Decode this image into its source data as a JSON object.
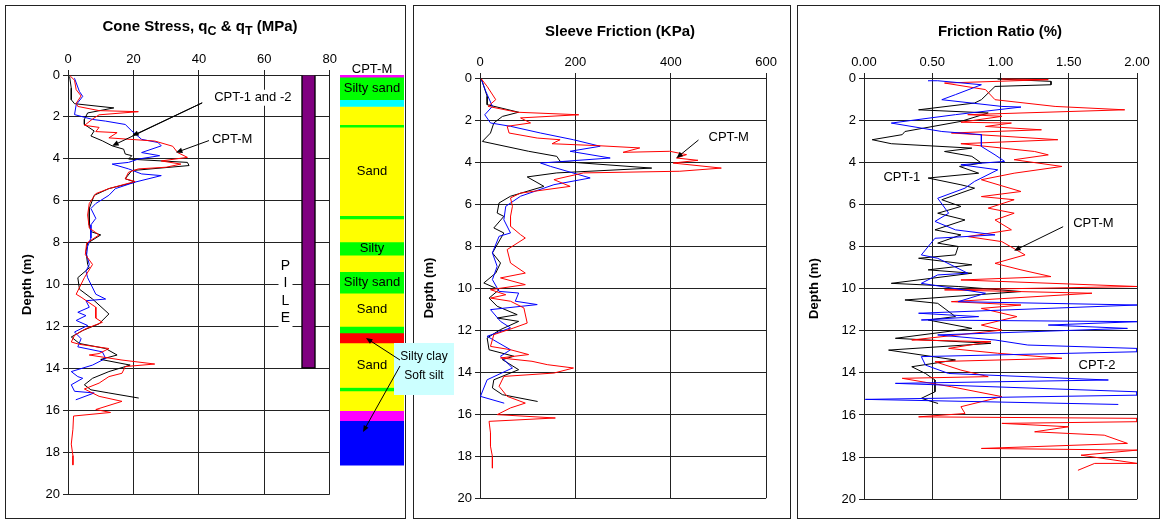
{
  "chart_data": [
    {
      "type": "line",
      "title": "Cone Stress, q$_{C}$ & q$_{T}$ (MPa)",
      "ylabel": "Depth (m)",
      "xlim": [
        0,
        80
      ],
      "xticks": [
        0,
        20,
        40,
        60,
        80
      ],
      "ylim": [
        20,
        0
      ],
      "yticks": [
        0,
        2,
        4,
        6,
        8,
        10,
        12,
        14,
        16,
        18,
        20
      ],
      "grid": true,
      "marker": "none",
      "series": [
        {
          "color": "#000000",
          "x": [
            0.5,
            1,
            1,
            2,
            14,
            6,
            5,
            5,
            8,
            7,
            10.5,
            13.5,
            17,
            17.5,
            19.5,
            18.5,
            36.5,
            37,
            19.5,
            17.5,
            20.5,
            12.5,
            8,
            6.5,
            6.5,
            7,
            10,
            6,
            5.5,
            6,
            6.5,
            3,
            3.5,
            7.5,
            12.5,
            9.5,
            4.5,
            1,
            3.5,
            11.5,
            15,
            10,
            19,
            12.5,
            7.5,
            5,
            7,
            12.5,
            21.5
          ],
          "values": [
            0.08,
            0.63,
            1.18,
            1.37,
            1.57,
            1.81,
            2.12,
            2.36,
            2.67,
            2.91,
            3.14,
            3.38,
            3.54,
            3.77,
            3.85,
            4.01,
            4.17,
            4.32,
            4.56,
            4.95,
            5.11,
            5.42,
            5.74,
            6.37,
            7.15,
            7.47,
            7.63,
            8.02,
            8.41,
            9.04,
            9.2,
            9.67,
            10.22,
            10.69,
            11.4,
            11.87,
            12.19,
            12.5,
            12.81,
            13.05,
            13.36,
            13.57,
            13.84,
            14.15,
            14.47,
            14.78,
            15.02,
            15.17,
            15.41
          ]
        },
        {
          "color": "#0000ff",
          "x": [
            2,
            3.5,
            4.5,
            2.5,
            2,
            7.5,
            11.5,
            17.5,
            19.5,
            22.5,
            27.5,
            28.5,
            22.5,
            28,
            21.5,
            18.5,
            13.5,
            18.5,
            22.5,
            28.5,
            20.5,
            14.5,
            12.5,
            8.5,
            7,
            8.5,
            7,
            7,
            6,
            5.7,
            6.5,
            5.5,
            6,
            8.5,
            11.5,
            5.5,
            6.5,
            3,
            5.5,
            2.5,
            6,
            2,
            4,
            3,
            10.5,
            11.5,
            7.5,
            1,
            3,
            4.5,
            1,
            2,
            8,
            2.5
          ],
          "values": [
            0.16,
            0.79,
            1.02,
            1.42,
            1.89,
            2.12,
            2.2,
            2.36,
            2.67,
            3.07,
            3.22,
            3.38,
            3.7,
            3.85,
            4.01,
            4.17,
            4.25,
            4.48,
            4.72,
            4.8,
            5.11,
            5.42,
            5.74,
            6.13,
            6.37,
            6.84,
            7.15,
            7.78,
            8.18,
            8.57,
            9.04,
            9.36,
            9.67,
            10.46,
            10.69,
            10.77,
            11.08,
            11.32,
            11.48,
            11.71,
            11.95,
            12.26,
            12.58,
            12.97,
            13.21,
            13.52,
            13.84,
            14.15,
            14.39,
            14.47,
            14.78,
            15.09,
            15.17,
            15.49
          ]
        },
        {
          "color": "#ff0000",
          "x": [
            0.7,
            2,
            2.5,
            4,
            2.5,
            3,
            9.5,
            21.5,
            9.5,
            7.5,
            5.5,
            5,
            9.5,
            8.5,
            15,
            12.5,
            26.5,
            32,
            33.5,
            36.5,
            28.5,
            34.5,
            30,
            21.5,
            18.5,
            17.5,
            20.5,
            12.5,
            8.5,
            6.5,
            6,
            6.5,
            9.5,
            5.7,
            5.3,
            7.5,
            5,
            3.5,
            2.5,
            4,
            8.5,
            8.5,
            10.5,
            5.5,
            2,
            1,
            3.5,
            12.5,
            9.5,
            6.5,
            16.5,
            26.5,
            17.5,
            16.5,
            12.5,
            9.5,
            5,
            9.5,
            16.5,
            8.5,
            13,
            1.7,
            1.5,
            1,
            1.5,
            1.5
          ],
          "values": [
            0.05,
            0.25,
            0.7,
            1,
            1.35,
            1.5,
            1.7,
            1.75,
            1.9,
            2.1,
            2.35,
            2.4,
            2.5,
            2.7,
            2.75,
            3,
            3.15,
            3.4,
            3.7,
            3.93,
            4.1,
            4.25,
            4.4,
            4.48,
            4.64,
            4.95,
            5.08,
            5.42,
            5.66,
            6.13,
            6.68,
            7.3,
            7.63,
            8.02,
            8.57,
            9.04,
            9.67,
            10.14,
            10.46,
            10.6,
            11.08,
            11.6,
            11.8,
            12.1,
            12.42,
            12.74,
            12.85,
            13.05,
            13.29,
            13.36,
            13.6,
            13.79,
            13.91,
            14.23,
            14.39,
            14.7,
            14.98,
            15.33,
            15.57,
            15.96,
            16.1,
            16.27,
            16.9,
            17.61,
            18.16,
            18.6
          ]
        },
        {
          "type": "bar",
          "name": "PILE",
          "color": "#800080",
          "x": [
            73.5
          ],
          "base": [
            0
          ],
          "values": [
            14
          ]
        }
      ],
      "annotations": [
        {
          "text": "CPT-1 and -2",
          "x": 13.5,
          "y": 3.38
        },
        {
          "text": "CPT-M",
          "x": 33,
          "y": 3.7
        }
      ]
    },
    {
      "type": "bar",
      "title": "CPT-M",
      "categories": [
        null
      ],
      "stacked": true,
      "ylim": [
        20,
        0
      ],
      "tick_labels": false,
      "series": [
        {
          "color": "#ff00ff",
          "values": [
            0.1
          ]
        },
        {
          "name": "Silty sand",
          "color": "#00ff00",
          "values": [
            1.08
          ]
        },
        {
          "color": "#00ffff",
          "values": [
            0.32
          ]
        },
        {
          "color": "#ffff00",
          "values": [
            0.86
          ]
        },
        {
          "color": "#00ff00",
          "values": [
            0.13
          ]
        },
        {
          "name": "Sand",
          "color": "#ffff00",
          "values": [
            4.21
          ]
        },
        {
          "color": "#00ff00",
          "values": [
            0.15
          ]
        },
        {
          "color": "#ffff00",
          "values": [
            1.1
          ]
        },
        {
          "name": "Silty",
          "color": "#00ff00",
          "values": [
            0.63
          ]
        },
        {
          "color": "#ffff00",
          "values": [
            0.79
          ]
        },
        {
          "name": "Silty sand",
          "color": "#00ff00",
          "values": [
            1.02
          ]
        },
        {
          "name": "Sand",
          "color": "#ffff00",
          "values": [
            1.58
          ]
        },
        {
          "color": "#00ff00",
          "values": [
            0.31
          ]
        },
        {
          "color": "#ff0000",
          "values": [
            0.48
          ]
        },
        {
          "name": "Sand",
          "color": "#ffff00",
          "values": [
            2.12
          ]
        },
        {
          "color": "#00ff00",
          "values": [
            0.16
          ]
        },
        {
          "color": "#ffff00",
          "values": [
            0.94
          ]
        },
        {
          "color": "#ff00ff",
          "values": [
            0.48
          ]
        },
        {
          "color": "#0000ff",
          "values": [
            2.12
          ]
        }
      ],
      "annotations": [
        "Silty clay Soft silt"
      ]
    },
    {
      "type": "line",
      "title": "Sleeve Friction (KPa)",
      "ylabel": "Depth (m)",
      "xlim": [
        0,
        600
      ],
      "xticks": [
        0,
        200,
        400,
        600
      ],
      "ylim": [
        20,
        0
      ],
      "yticks": [
        0,
        2,
        4,
        6,
        8,
        10,
        12,
        14,
        16,
        18,
        20
      ],
      "grid": true,
      "marker": "none",
      "series": [
        {
          "color": "#000000",
          "x": [
            3,
            15,
            15,
            81,
            47,
            29,
            22,
            5,
            102,
            161,
            168,
            360,
            161,
            99,
            134,
            64,
            40,
            36,
            50,
            29,
            50,
            26,
            43,
            33,
            8,
            40,
            19,
            36,
            78,
            36,
            81,
            43,
            15,
            19,
            71,
            47,
            81,
            29,
            26,
            47,
            120
          ],
          "values": [
            0.05,
            0.87,
            1.27,
            1.63,
            1.83,
            2.14,
            2.62,
            3.02,
            3.49,
            3.73,
            3.97,
            4.29,
            4.52,
            4.71,
            5.16,
            5.63,
            5.95,
            6.43,
            6.59,
            7.14,
            7.38,
            8.33,
            8.81,
            9.29,
            9.76,
            10.08,
            10.48,
            10.87,
            11.27,
            11.43,
            11.59,
            11.98,
            12.38,
            12.94,
            13.25,
            13.41,
            13.89,
            14.37,
            14.76,
            15.08,
            15.4
          ]
        },
        {
          "color": "#0000ff",
          "x": [
            3,
            12,
            26,
            10,
            22,
            64,
            127,
            196,
            252,
            189,
            273,
            127,
            148,
            231,
            155,
            85,
            54,
            50,
            64,
            40,
            26,
            36,
            26,
            40,
            81,
            74,
            120,
            22,
            43,
            64,
            15,
            64,
            43,
            68,
            15,
            8,
            1,
            50
          ],
          "values": [
            0.08,
            0.63,
            1.35,
            1.75,
            2.14,
            2.3,
            2.62,
            2.94,
            3.25,
            3.49,
            3.81,
            4.05,
            4.21,
            4.76,
            5.08,
            5.63,
            6.11,
            6.75,
            7.38,
            7.54,
            8.33,
            8.97,
            9.6,
            10.16,
            10.24,
            10.63,
            10.79,
            11.03,
            11.59,
            11.9,
            12.3,
            12.94,
            13.25,
            13.81,
            14.37,
            14.76,
            15.16,
            15.48
          ]
        },
        {
          "color": "#ff0000",
          "x": [
            3,
            15,
            33,
            17,
            78,
            207,
            85,
            106,
            57,
            61,
            120,
            168,
            151,
            245,
            335,
            300,
            398,
            433,
            412,
            457,
            405,
            506,
            419,
            217,
            155,
            189,
            85,
            64,
            68,
            64,
            64,
            85,
            95,
            57,
            64,
            95,
            43,
            95,
            22,
            54,
            22,
            64,
            92,
            99,
            71,
            29,
            22,
            64,
            102,
            43,
            109,
            141,
            196,
            155,
            50,
            40,
            57,
            95,
            64,
            36,
            158,
            19,
            22,
            22,
            26,
            26
          ],
          "values": [
            0.05,
            0.4,
            1.03,
            1.35,
            1.63,
            1.75,
            1.9,
            2.14,
            2.3,
            2.62,
            2.86,
            2.94,
            3.13,
            3.22,
            3.33,
            3.54,
            3.49,
            3.65,
            3.81,
            3.92,
            4.05,
            4.29,
            4.44,
            4.52,
            4.84,
            5.16,
            5.48,
            5.71,
            6.11,
            6.59,
            7.06,
            7.46,
            7.62,
            8.17,
            8.81,
            9.29,
            9.52,
            9.84,
            10.08,
            10.32,
            10.48,
            10.63,
            10.95,
            11.67,
            11.9,
            12.22,
            12.78,
            12.94,
            13.17,
            13.33,
            13.49,
            13.65,
            13.81,
            14.05,
            14.21,
            14.68,
            15.16,
            15.48,
            15.71,
            16.03,
            16.19,
            16.35,
            16.9,
            17.54,
            18.02,
            18.57
          ]
        }
      ],
      "annotations": [
        {
          "text": "CPT-M",
          "x": 412,
          "y": 3.81
        }
      ]
    },
    {
      "type": "line",
      "title": "Friction Ratio (%)",
      "ylabel": "Depth (m)",
      "xlim": [
        0,
        2
      ],
      "xticks": [
        {
          "value": 0,
          "label": "0.00"
        },
        {
          "value": 0.5,
          "label": "0.50"
        },
        {
          "value": 1,
          "label": "1.00"
        },
        {
          "value": 1.5,
          "label": "1.50"
        },
        {
          "value": 2,
          "label": "2.00"
        }
      ],
      "ylim": [
        20,
        0
      ],
      "yticks": [
        0,
        2,
        4,
        6,
        8,
        10,
        12,
        14,
        16,
        18,
        20
      ],
      "grid": true,
      "marker": "none",
      "series": [
        {
          "color": "#000000",
          "x": [
            0.98,
            1.37,
            1.37,
            0.96,
            0.86,
            0.81,
            0.4,
            0.91,
            0.71,
            0.3,
            0.28,
            0.06,
            0.2,
            0.79,
            0.59,
            0.79,
            0.86,
            0.7,
            0.84,
            0.47,
            0.71,
            0.81,
            0.57,
            0.71,
            0.54,
            0.74,
            0.52,
            0.71,
            0.54,
            0.69,
            0.67,
            0.4,
            0.79,
            0.47,
            0.79,
            0.2,
            0.69,
            1.15,
            0.3,
            0.54,
            0.67,
            0.47,
            0.79,
            0.23,
            0.93,
            0.18,
            0.67,
            0.35,
            0.45,
            0.52,
            0.52,
            0.42,
            0.54
          ],
          "values": [
            0.05,
            0.16,
            0.32,
            0.4,
            1.03,
            1.19,
            1.51,
            1.66,
            2.06,
            2.54,
            2.69,
            2.93,
            3.12,
            3.33,
            3.49,
            3.72,
            4.04,
            4.2,
            4.52,
            4.75,
            5.07,
            5.23,
            5.78,
            6.1,
            6.42,
            6.74,
            7.21,
            7.45,
            7.84,
            8,
            8.4,
            8.56,
            8.87,
            9.11,
            9.27,
            9.75,
            9.9,
            10.14,
            10.54,
            10.7,
            11.33,
            11.49,
            11.89,
            12.36,
            12.6,
            12.92,
            13.39,
            13.71,
            14.03,
            14.34,
            14.9,
            15.21,
            15.45
          ]
        },
        {
          "color": "#ff0000",
          "x": [
            1.01,
            1.35,
            0.59,
            0.89,
            0.96,
            1.4,
            1.91,
            0.76,
            1.01,
            0.71,
            1.08,
            0.89,
            1.3,
            0.64,
            1.42,
            0.71,
            1.25,
            1.35,
            1.1,
            1.45,
            1.1,
            0.86,
            1.15,
            0.86,
            1.1,
            0.91,
            1.1,
            0.96,
            1.08,
            0.76,
            1.01,
            1.18,
            0.96,
            1.15,
            1.37,
            0.71,
            2,
            0.59,
            1.67,
            0.64,
            1.15,
            0.86,
            1.12,
            0.86,
            1.01,
            0.35,
            0.93,
            0.62,
            0.98,
            1.45,
            0.52,
            0.71,
            0.91,
            0.28,
            0.64,
            1.01,
            0.71,
            0.74,
            0.4,
            2,
            2,
            1.01,
            1.5,
            1.25,
            1.76,
            1.93,
            0.86,
            2,
            1.59,
            2,
            1.69,
            1.57
          ],
          "values": [
            0.05,
            0.08,
            0.24,
            0.55,
            1.03,
            1.35,
            1.51,
            1.74,
            1.82,
            2.1,
            2.14,
            2.3,
            2.46,
            2.61,
            2.93,
            3.12,
            3.49,
            3.65,
            3.88,
            4.2,
            4.52,
            4.83,
            5.39,
            5.63,
            5.78,
            6.18,
            6.42,
            6.74,
            7.21,
            7.53,
            7.77,
            8.4,
            8.8,
            9.11,
            9.43,
            9.59,
            9.9,
            10.06,
            10.22,
            10.62,
            10.78,
            10.94,
            11.33,
            11.73,
            11.97,
            12.44,
            12.52,
            12.84,
            13.07,
            13.31,
            13.47,
            13.87,
            14.18,
            14.26,
            14.66,
            15.13,
            15.61,
            15.93,
            16.09,
            16.16,
            16.32,
            16.4,
            16.56,
            16.8,
            16.96,
            17.35,
            17.59,
            17.67,
            17.91,
            18.3,
            18.3,
            18.62
          ]
        },
        {
          "color": "#0000ff",
          "x": [
            0.47,
            0.54,
            0.86,
            0.67,
            0.57,
            1.01,
            1.15,
            0.67,
            0.2,
            0.57,
            0.86,
            0.86,
            0.96,
            1.03,
            0.71,
            0.98,
            0.81,
            0.74,
            0.54,
            0.62,
            0.52,
            0.67,
            0.96,
            0.52,
            0.42,
            0.54,
            0.76,
            0.54,
            0.42,
            0.89,
            0.69,
            2,
            0.4,
            0.84,
            0.42,
            2,
            1.35,
            1.93,
            0.54,
            0.96,
            1.2,
            2,
            2,
            0.42,
            0.45,
            0.62,
            1.79,
            0.23,
            2,
            2,
            0.01,
            1.86
          ],
          "values": [
            0.13,
            0.13,
            0.32,
            0.79,
            1.03,
            1.35,
            1.38,
            1.74,
            2.14,
            2.54,
            2.69,
            3.25,
            3.65,
            3.96,
            4.12,
            4.36,
            4.91,
            5.23,
            5.71,
            6.42,
            6.81,
            7.21,
            7.45,
            7.61,
            8.4,
            8.56,
            9.27,
            9.35,
            9.75,
            10.22,
            10.62,
            10.78,
            11.17,
            11.33,
            11.49,
            11.57,
            11.73,
            11.89,
            12.2,
            12.44,
            12.68,
            12.84,
            13,
            13.23,
            13.63,
            14.03,
            14.34,
            14.5,
            14.9,
            15.06,
            15.26,
            15.5
          ]
        }
      ],
      "annotations": [
        {
          "text": "CPT-1",
          "x": 0.5,
          "y": 4.8
        },
        {
          "text": "CPT-M",
          "x": 1.1,
          "y": 8.2
        },
        "CPT-2"
      ]
    }
  ]
}
